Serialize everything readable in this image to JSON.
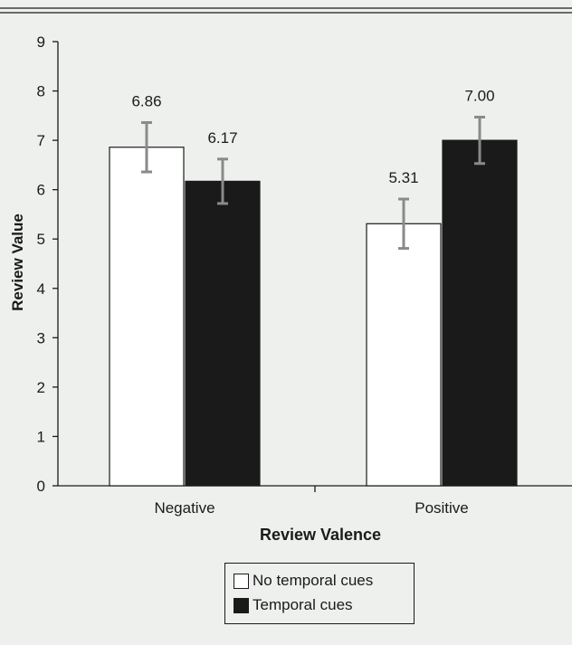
{
  "chart_data": {
    "type": "bar",
    "xlabel": "Review Valence",
    "ylabel": "Review Value",
    "ylim": [
      0,
      9
    ],
    "yticks": [
      0,
      1,
      2,
      3,
      4,
      5,
      6,
      7,
      8,
      9
    ],
    "categories": [
      "Negative",
      "Positive"
    ],
    "series": [
      {
        "name": "No temporal cues",
        "color": "#ffffff",
        "values": [
          6.86,
          5.31
        ],
        "value_labels": [
          "6.86",
          "5.31"
        ],
        "error": [
          0.5,
          0.5
        ]
      },
      {
        "name": "Temporal cues",
        "color": "#1a1a1a",
        "values": [
          6.17,
          7.0
        ],
        "value_labels": [
          "6.17",
          "7.00"
        ],
        "error": [
          0.45,
          0.47
        ]
      }
    ],
    "legend_position": "bottom-center",
    "grid": false
  }
}
